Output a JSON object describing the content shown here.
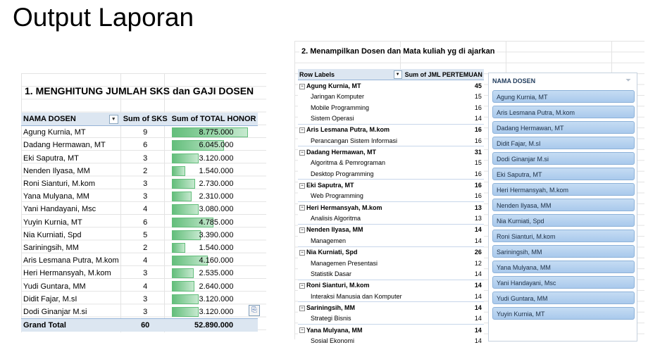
{
  "page_title": "Output Laporan",
  "left": {
    "title": "1. MENGHITUNG JUMLAH SKS dan GAJI DOSEN",
    "headers": [
      "NAMA DOSEN",
      "Sum of SKS",
      "Sum of TOTAL HONOR"
    ],
    "rows": [
      {
        "name": "Agung Kurnia, MT",
        "sks": "9",
        "honor": "8.775.000",
        "honor_value": 8775000
      },
      {
        "name": "Dadang Hermawan, MT",
        "sks": "6",
        "honor": "6.045.000",
        "honor_value": 6045000
      },
      {
        "name": "Eki Saputra, MT",
        "sks": "3",
        "honor": "3.120.000",
        "honor_value": 3120000
      },
      {
        "name": "Nenden Ilyasa, MM",
        "sks": "2",
        "honor": "1.540.000",
        "honor_value": 1540000
      },
      {
        "name": "Roni Sianturi, M.kom",
        "sks": "3",
        "honor": "2.730.000",
        "honor_value": 2730000
      },
      {
        "name": "Yana Mulyana, MM",
        "sks": "3",
        "honor": "2.310.000",
        "honor_value": 2310000
      },
      {
        "name": "Yani Handayani, Msc",
        "sks": "4",
        "honor": "3.080.000",
        "honor_value": 3080000
      },
      {
        "name": "Yuyin Kurnia, MT",
        "sks": "6",
        "honor": "4.785.000",
        "honor_value": 4785000
      },
      {
        "name": "Nia Kurniati, Spd",
        "sks": "5",
        "honor": "3.390.000",
        "honor_value": 3390000
      },
      {
        "name": "Sariningsih, MM",
        "sks": "2",
        "honor": "1.540.000",
        "honor_value": 1540000
      },
      {
        "name": "Aris Lesmana Putra, M.kom",
        "sks": "4",
        "honor": "4.160.000",
        "honor_value": 4160000
      },
      {
        "name": "Heri Hermansyah, M.kom",
        "sks": "3",
        "honor": "2.535.000",
        "honor_value": 2535000
      },
      {
        "name": "Yudi Guntara, MM",
        "sks": "4",
        "honor": "2.640.000",
        "honor_value": 2640000
      },
      {
        "name": "Didit Fajar, M.sI",
        "sks": "3",
        "honor": "3.120.000",
        "honor_value": 3120000
      },
      {
        "name": "Dodi Ginanjar M.si",
        "sks": "3",
        "honor": "3.120.000",
        "honor_value": 3120000
      }
    ],
    "total": {
      "label": "Grand Total",
      "sks": "60",
      "honor": "52.890.000"
    },
    "bar_color": "#63be7b"
  },
  "right": {
    "title": "2. Menampilkan Dosen dan Mata kuliah yg di ajarkan",
    "headers": [
      "Row Labels",
      "Sum of JML PERTEMUAN"
    ],
    "rows": [
      {
        "type": "group",
        "label": "Agung Kurnia, MT",
        "value": "45"
      },
      {
        "type": "sub",
        "label": "Jaringan Komputer",
        "value": "15"
      },
      {
        "type": "sub",
        "label": "Mobile Programming",
        "value": "16"
      },
      {
        "type": "sub",
        "label": "Sistem Operasi",
        "value": "14"
      },
      {
        "type": "group",
        "label": "Aris Lesmana Putra, M.kom",
        "value": "16"
      },
      {
        "type": "sub",
        "label": "Perancangan Sistem Informasi",
        "value": "16"
      },
      {
        "type": "group",
        "label": "Dadang Hermawan, MT",
        "value": "31"
      },
      {
        "type": "sub",
        "label": "Algoritma & Pemrograman",
        "value": "15"
      },
      {
        "type": "sub",
        "label": "Desktop Programming",
        "value": "16"
      },
      {
        "type": "group",
        "label": "Eki Saputra, MT",
        "value": "16"
      },
      {
        "type": "sub",
        "label": "Web Programming",
        "value": "16"
      },
      {
        "type": "group",
        "label": "Heri Hermansyah, M.kom",
        "value": "13"
      },
      {
        "type": "sub",
        "label": "Analisis Algoritma",
        "value": "13"
      },
      {
        "type": "group",
        "label": "Nenden Ilyasa, MM",
        "value": "14"
      },
      {
        "type": "sub",
        "label": "Managemen",
        "value": "14"
      },
      {
        "type": "group",
        "label": "Nia Kurniati, Spd",
        "value": "26"
      },
      {
        "type": "sub",
        "label": "Managemen Presentasi",
        "value": "12"
      },
      {
        "type": "sub",
        "label": "Statistik Dasar",
        "value": "14"
      },
      {
        "type": "group",
        "label": "Roni Sianturi, M.kom",
        "value": "14"
      },
      {
        "type": "sub",
        "label": "Interaksi Manusia dan Komputer",
        "value": "14"
      },
      {
        "type": "group",
        "label": "Sariningsih, MM",
        "value": "14"
      },
      {
        "type": "sub",
        "label": "Strategi Bisnis",
        "value": "14"
      },
      {
        "type": "group",
        "label": "Yana Mulyana, MM",
        "value": "14"
      },
      {
        "type": "sub",
        "label": "Sosial Ekonomi",
        "value": "14"
      }
    ]
  },
  "slicer": {
    "header": "NAMA DOSEN",
    "items": [
      "Agung Kurnia, MT",
      "Aris Lesmana Putra, M.kom",
      "Dadang Hermawan, MT",
      "Didit Fajar, M.sI",
      "Dodi Ginanjar M.si",
      "Eki Saputra, MT",
      "Heri Hermansyah, M.kom",
      "Nenden Ilyasa, MM",
      "Nia Kurniati, Spd",
      "Roni Sianturi, M.kom",
      "Sariningsih, MM",
      "Yana Mulyana, MM",
      "Yani Handayani, Msc",
      "Yudi Guntara, MM",
      "Yuyin Kurnia, MT"
    ]
  }
}
